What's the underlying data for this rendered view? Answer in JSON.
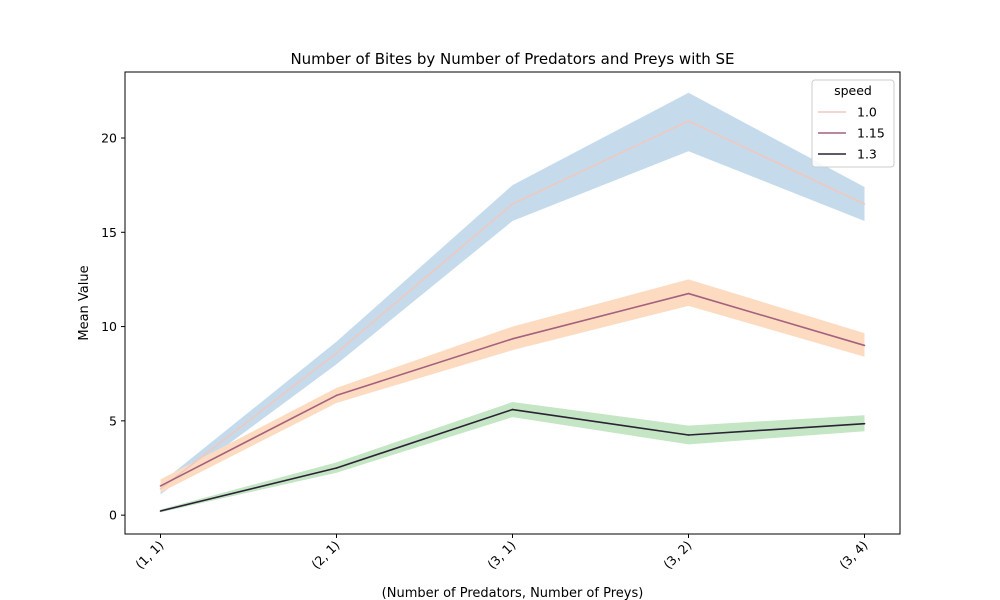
{
  "chart_data": {
    "type": "line",
    "title": "Number of Bites by Number of Predators and Preys with SE",
    "xlabel": "(Number of Predators, Number of Preys)",
    "ylabel": "Mean Value",
    "categories": [
      "(1, 1)",
      "(2, 1)",
      "(3, 1)",
      "(3, 2)",
      "(3, 4)"
    ],
    "ylim": [
      -1.0,
      23.5
    ],
    "yticks": [
      0,
      5,
      10,
      15,
      20
    ],
    "grid": false,
    "legend": {
      "title": "speed",
      "placement": "top-right"
    },
    "series": [
      {
        "name": "1.0",
        "color": "#efc8bf",
        "band_color": "#c5dbec",
        "values": [
          1.4,
          8.6,
          16.5,
          20.9,
          16.5
        ],
        "lower": [
          1.1,
          8.0,
          15.6,
          19.3,
          15.6
        ],
        "upper": [
          1.7,
          9.2,
          17.5,
          22.4,
          17.4
        ]
      },
      {
        "name": "1.15",
        "color": "#a4617e",
        "band_color": "#fddbc1",
        "values": [
          1.55,
          6.35,
          9.35,
          11.75,
          9.0
        ],
        "lower": [
          1.2,
          5.95,
          8.75,
          11.1,
          8.4
        ],
        "upper": [
          1.9,
          6.75,
          10.0,
          12.5,
          9.65
        ]
      },
      {
        "name": "1.3",
        "color": "#2b2235",
        "band_color": "#c4e6c4",
        "values": [
          0.22,
          2.5,
          5.6,
          4.25,
          4.85
        ],
        "lower": [
          0.15,
          2.25,
          5.2,
          3.75,
          4.45
        ],
        "upper": [
          0.3,
          2.8,
          6.0,
          4.75,
          5.3
        ]
      }
    ]
  }
}
